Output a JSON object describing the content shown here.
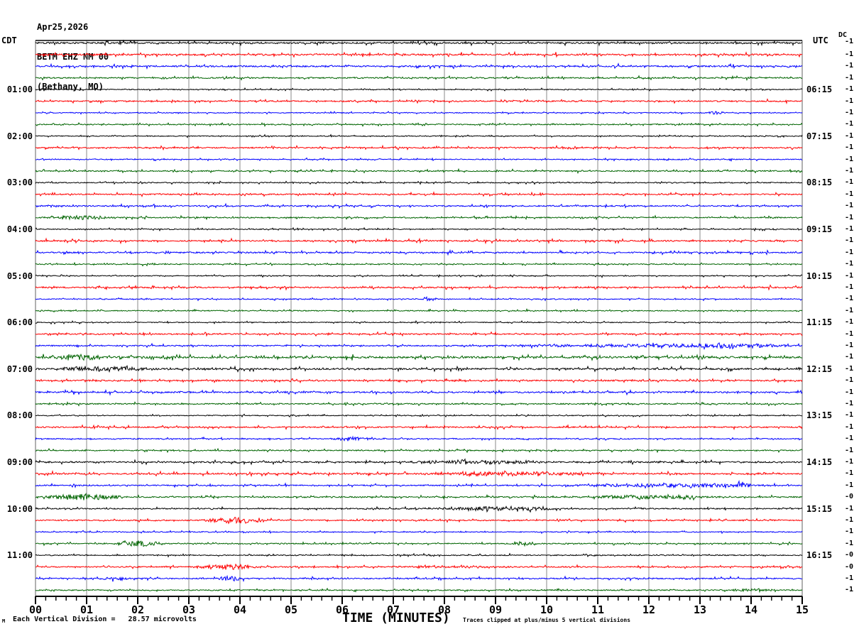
{
  "title": {
    "date": "Apr25,2026",
    "station": "BETM EHZ NM 00",
    "location": "(Bethany, MO)"
  },
  "axes": {
    "left_label": "CDT",
    "right_label": "UTC",
    "dc_label": "DC",
    "x_title": "TIME (MINUTES)",
    "x_ticks": [
      "00",
      "01",
      "02",
      "03",
      "04",
      "05",
      "06",
      "07",
      "08",
      "09",
      "10",
      "11",
      "12",
      "13",
      "14",
      "15"
    ],
    "x_minor_interval_minutes": 0.2
  },
  "footer": {
    "left_marker": "M",
    "scale_note": "Each Vertical Division =   28.57 microvolts",
    "clip_note": "Traces clipped at plus/minus 5 vertical divisions"
  },
  "colors": {
    "background": "#ffffff",
    "grid": "#8a8a8a",
    "border": "#606060",
    "axis": "#000000",
    "trace_cycle": [
      "#000000",
      "#ff0000",
      "#0000ff",
      "#006400"
    ]
  },
  "chart_data": {
    "type": "line",
    "subtype": "helicorder-seismogram",
    "minutes_per_line": 15,
    "x_range": [
      0,
      15
    ],
    "volts_per_division": "28.57 microvolts",
    "clip_divisions": 5,
    "traces": [
      {
        "cdt_start": "00:00",
        "cdt_label": "",
        "utc_label": "",
        "dc": "-1",
        "color": "#000000",
        "noise": 1.6,
        "events": []
      },
      {
        "cdt_start": "00:15",
        "cdt_label": "",
        "utc_label": "",
        "dc": "-1",
        "color": "#ff0000",
        "noise": 1.6,
        "events": []
      },
      {
        "cdt_start": "00:30",
        "cdt_label": "",
        "utc_label": "",
        "dc": "-1",
        "color": "#0000ff",
        "noise": 1.6,
        "events": []
      },
      {
        "cdt_start": "00:45",
        "cdt_label": "",
        "utc_label": "",
        "dc": "-1",
        "color": "#006400",
        "noise": 1.3,
        "events": []
      },
      {
        "cdt_start": "01:00",
        "cdt_label": "01:00",
        "utc_label": "06:15",
        "dc": "-1",
        "color": "#000000",
        "noise": 0.9,
        "events": []
      },
      {
        "cdt_start": "01:15",
        "cdt_label": "",
        "utc_label": "",
        "dc": "-1",
        "color": "#ff0000",
        "noise": 1.3,
        "events": []
      },
      {
        "cdt_start": "01:30",
        "cdt_label": "",
        "utc_label": "",
        "dc": "-1",
        "color": "#0000ff",
        "noise": 0.9,
        "events": [
          [
            13.1,
            13.5,
            1.2
          ]
        ]
      },
      {
        "cdt_start": "01:45",
        "cdt_label": "",
        "utc_label": "",
        "dc": "-1",
        "color": "#006400",
        "noise": 1.1,
        "events": []
      },
      {
        "cdt_start": "02:00",
        "cdt_label": "02:00",
        "utc_label": "07:15",
        "dc": "-1",
        "color": "#000000",
        "noise": 0.9,
        "events": []
      },
      {
        "cdt_start": "02:15",
        "cdt_label": "",
        "utc_label": "",
        "dc": "-1",
        "color": "#ff0000",
        "noise": 1.3,
        "events": []
      },
      {
        "cdt_start": "02:30",
        "cdt_label": "",
        "utc_label": "",
        "dc": "-1",
        "color": "#0000ff",
        "noise": 0.9,
        "events": []
      },
      {
        "cdt_start": "02:45",
        "cdt_label": "",
        "utc_label": "",
        "dc": "-1",
        "color": "#006400",
        "noise": 1.2,
        "events": []
      },
      {
        "cdt_start": "03:00",
        "cdt_label": "03:00",
        "utc_label": "08:15",
        "dc": "-1",
        "color": "#000000",
        "noise": 1.0,
        "events": []
      },
      {
        "cdt_start": "03:15",
        "cdt_label": "",
        "utc_label": "",
        "dc": "-1",
        "color": "#ff0000",
        "noise": 1.3,
        "events": []
      },
      {
        "cdt_start": "03:30",
        "cdt_label": "",
        "utc_label": "",
        "dc": "-1",
        "color": "#0000ff",
        "noise": 1.3,
        "events": []
      },
      {
        "cdt_start": "03:45",
        "cdt_label": "",
        "utc_label": "",
        "dc": "-1",
        "color": "#006400",
        "noise": 1.2,
        "events": [
          [
            0.1,
            1.6,
            1.6
          ]
        ]
      },
      {
        "cdt_start": "04:00",
        "cdt_label": "04:00",
        "utc_label": "09:15",
        "dc": "-1",
        "color": "#000000",
        "noise": 0.9,
        "events": []
      },
      {
        "cdt_start": "04:15",
        "cdt_label": "",
        "utc_label": "",
        "dc": "-1",
        "color": "#ff0000",
        "noise": 1.4,
        "events": []
      },
      {
        "cdt_start": "04:30",
        "cdt_label": "",
        "utc_label": "",
        "dc": "-1",
        "color": "#0000ff",
        "noise": 1.4,
        "events": []
      },
      {
        "cdt_start": "04:45",
        "cdt_label": "",
        "utc_label": "",
        "dc": "-1",
        "color": "#006400",
        "noise": 1.0,
        "events": []
      },
      {
        "cdt_start": "05:00",
        "cdt_label": "05:00",
        "utc_label": "10:15",
        "dc": "-1",
        "color": "#000000",
        "noise": 0.9,
        "events": []
      },
      {
        "cdt_start": "05:15",
        "cdt_label": "",
        "utc_label": "",
        "dc": "-1",
        "color": "#ff0000",
        "noise": 1.4,
        "events": []
      },
      {
        "cdt_start": "05:30",
        "cdt_label": "",
        "utc_label": "",
        "dc": "-1",
        "color": "#0000ff",
        "noise": 0.9,
        "events": [
          [
            7.5,
            7.9,
            1.6
          ]
        ]
      },
      {
        "cdt_start": "05:45",
        "cdt_label": "",
        "utc_label": "",
        "dc": "-1",
        "color": "#006400",
        "noise": 1.0,
        "events": []
      },
      {
        "cdt_start": "06:00",
        "cdt_label": "06:00",
        "utc_label": "11:15",
        "dc": "-1",
        "color": "#000000",
        "noise": 0.9,
        "events": []
      },
      {
        "cdt_start": "06:15",
        "cdt_label": "",
        "utc_label": "",
        "dc": "-1",
        "color": "#ff0000",
        "noise": 1.3,
        "events": []
      },
      {
        "cdt_start": "06:30",
        "cdt_label": "",
        "utc_label": "",
        "dc": "-1",
        "color": "#0000ff",
        "noise": 1.2,
        "events": [
          [
            8.5,
            15,
            1.0
          ],
          [
            12,
            15,
            1.8
          ]
        ]
      },
      {
        "cdt_start": "06:45",
        "cdt_label": "",
        "utc_label": "",
        "dc": "-1",
        "color": "#006400",
        "noise": 2.0,
        "events": [
          [
            0.3,
            1.3,
            2.8
          ]
        ]
      },
      {
        "cdt_start": "07:00",
        "cdt_label": "07:00",
        "utc_label": "12:15",
        "dc": "-1",
        "color": "#000000",
        "noise": 1.7,
        "events": [
          [
            0,
            2.5,
            1.8
          ]
        ]
      },
      {
        "cdt_start": "07:15",
        "cdt_label": "",
        "utc_label": "",
        "dc": "-1",
        "color": "#ff0000",
        "noise": 1.4,
        "events": []
      },
      {
        "cdt_start": "07:30",
        "cdt_label": "",
        "utc_label": "",
        "dc": "-1",
        "color": "#0000ff",
        "noise": 1.5,
        "events": []
      },
      {
        "cdt_start": "07:45",
        "cdt_label": "",
        "utc_label": "",
        "dc": "-1",
        "color": "#006400",
        "noise": 1.2,
        "events": []
      },
      {
        "cdt_start": "08:00",
        "cdt_label": "08:00",
        "utc_label": "13:15",
        "dc": "-1",
        "color": "#000000",
        "noise": 0.9,
        "events": []
      },
      {
        "cdt_start": "08:15",
        "cdt_label": "",
        "utc_label": "",
        "dc": "-1",
        "color": "#ff0000",
        "noise": 1.3,
        "events": []
      },
      {
        "cdt_start": "08:30",
        "cdt_label": "",
        "utc_label": "",
        "dc": "-1",
        "color": "#0000ff",
        "noise": 1.0,
        "events": [
          [
            5.7,
            6.7,
            1.5
          ]
        ]
      },
      {
        "cdt_start": "08:45",
        "cdt_label": "",
        "utc_label": "",
        "dc": "-1",
        "color": "#006400",
        "noise": 1.1,
        "events": []
      },
      {
        "cdt_start": "09:00",
        "cdt_label": "09:00",
        "utc_label": "14:15",
        "dc": "-1",
        "color": "#000000",
        "noise": 1.4,
        "events": [
          [
            7,
            10.3,
            1.5
          ]
        ]
      },
      {
        "cdt_start": "09:15",
        "cdt_label": "",
        "utc_label": "",
        "dc": "-1",
        "color": "#ff0000",
        "noise": 1.5,
        "events": [
          [
            7.3,
            11.2,
            1.8
          ]
        ]
      },
      {
        "cdt_start": "09:30",
        "cdt_label": "",
        "utc_label": "",
        "dc": "-1",
        "color": "#0000ff",
        "noise": 1.2,
        "events": [
          [
            10,
            15,
            1.5
          ],
          [
            13.6,
            14,
            2.4
          ]
        ]
      },
      {
        "cdt_start": "09:45",
        "cdt_label": "",
        "utc_label": "",
        "dc": "-0",
        "color": "#006400",
        "noise": 1.2,
        "events": [
          [
            0,
            1.9,
            2.2
          ],
          [
            10.3,
            13.6,
            1.4
          ],
          [
            12.6,
            13,
            2.0
          ]
        ]
      },
      {
        "cdt_start": "10:00",
        "cdt_label": "10:00",
        "utc_label": "15:15",
        "dc": "-1",
        "color": "#000000",
        "noise": 1.2,
        "events": [
          [
            7.5,
            10.5,
            1.5
          ]
        ]
      },
      {
        "cdt_start": "10:15",
        "cdt_label": "",
        "utc_label": "",
        "dc": "-1",
        "color": "#ff0000",
        "noise": 1.2,
        "events": [
          [
            3.2,
            4.7,
            2.2
          ]
        ]
      },
      {
        "cdt_start": "10:30",
        "cdt_label": "",
        "utc_label": "",
        "dc": "-1",
        "color": "#0000ff",
        "noise": 0.9,
        "events": []
      },
      {
        "cdt_start": "10:45",
        "cdt_label": "",
        "utc_label": "",
        "dc": "-1",
        "color": "#006400",
        "noise": 1.1,
        "events": [
          [
            1.5,
            2.6,
            2.6
          ],
          [
            9.3,
            9.9,
            1.5
          ]
        ]
      },
      {
        "cdt_start": "11:00",
        "cdt_label": "11:00",
        "utc_label": "16:15",
        "dc": "-0",
        "color": "#000000",
        "noise": 1.0,
        "events": []
      },
      {
        "cdt_start": "11:15",
        "cdt_label": "",
        "utc_label": "",
        "dc": "-0",
        "color": "#ff0000",
        "noise": 1.2,
        "events": [
          [
            3.0,
            4.5,
            2.0
          ],
          [
            6.6,
            9.5,
            0.8
          ]
        ]
      },
      {
        "cdt_start": "11:30",
        "cdt_label": "",
        "utc_label": "",
        "dc": "-1",
        "color": "#0000ff",
        "noise": 1.2,
        "events": [
          [
            1.2,
            1.9,
            1.5
          ],
          [
            3.5,
            4.2,
            1.8
          ]
        ]
      },
      {
        "cdt_start": "11:45",
        "cdt_label": "",
        "utc_label": "",
        "dc": "-1",
        "color": "#006400",
        "noise": 1.1,
        "events": [
          [
            13.4,
            14.6,
            1.2
          ]
        ]
      }
    ]
  }
}
